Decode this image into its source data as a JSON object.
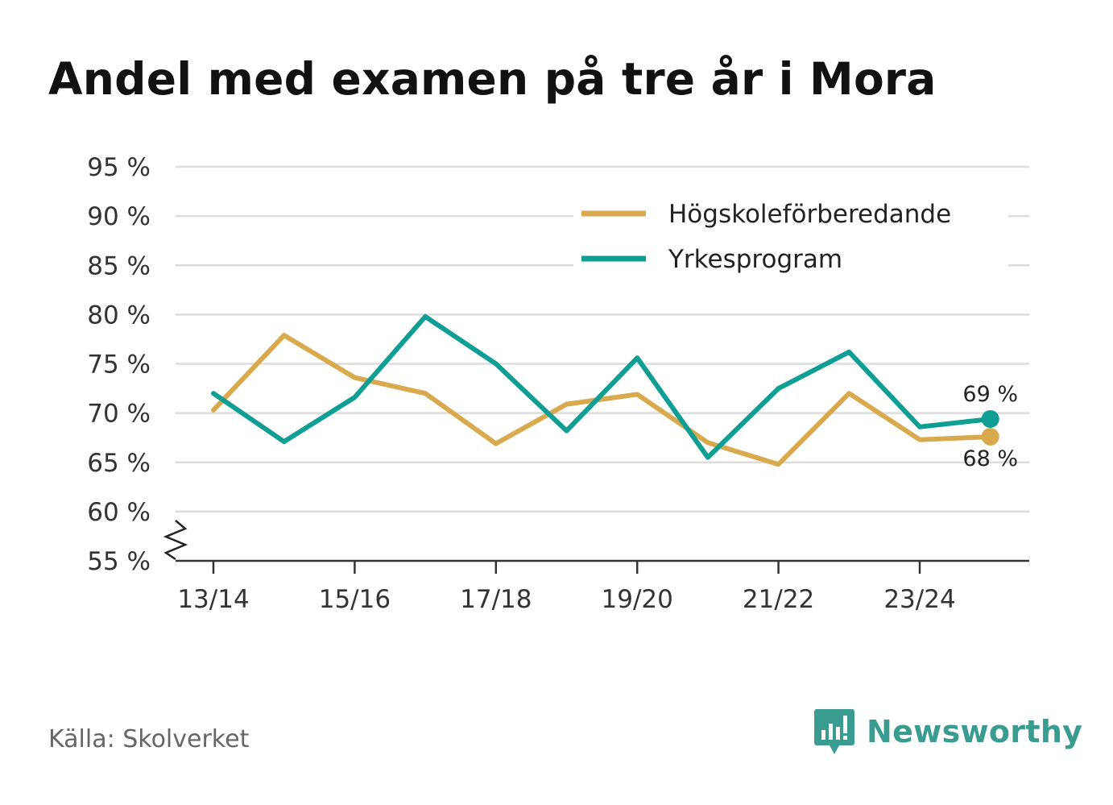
{
  "title": "Andel med examen på tre år i Mora",
  "source": "Källa: Skolverket",
  "brand": {
    "name": "Newsworthy",
    "icon": "newsworthy-logo-icon",
    "color": "#3a9c90"
  },
  "chart_data": {
    "type": "line",
    "title": "Andel med examen på tre år i Mora",
    "xlabel": "",
    "ylabel": "",
    "x": [
      "13/14",
      "14/15",
      "15/16",
      "16/17",
      "17/18",
      "18/19",
      "19/20",
      "20/21",
      "21/22",
      "22/23",
      "23/24",
      "24/25"
    ],
    "x_tick_labels": [
      "13/14",
      "15/16",
      "17/18",
      "19/20",
      "21/22",
      "23/24"
    ],
    "y_ticks": [
      55,
      60,
      65,
      70,
      75,
      80,
      85,
      90,
      95
    ],
    "y_tick_labels": [
      "55 %",
      "60 %",
      "65 %",
      "70 %",
      "75 %",
      "80 %",
      "85 %",
      "90 %",
      "95 %"
    ],
    "ylim": [
      55,
      95
    ],
    "y_axis_break": true,
    "grid": true,
    "legend_position": "top-right",
    "series": [
      {
        "name": "Högskoleförberedande",
        "color": "#d9a94e",
        "values": [
          70.3,
          77.9,
          73.6,
          72.0,
          66.9,
          70.9,
          71.9,
          67.0,
          64.8,
          72.0,
          67.3,
          67.6
        ],
        "end_label": "68 %"
      },
      {
        "name": "Yrkesprogram",
        "color": "#0e9e94",
        "values": [
          72.0,
          67.1,
          71.6,
          79.8,
          75.0,
          68.2,
          75.6,
          65.5,
          72.5,
          76.2,
          68.6,
          69.4
        ],
        "end_label": "69 %"
      }
    ]
  }
}
